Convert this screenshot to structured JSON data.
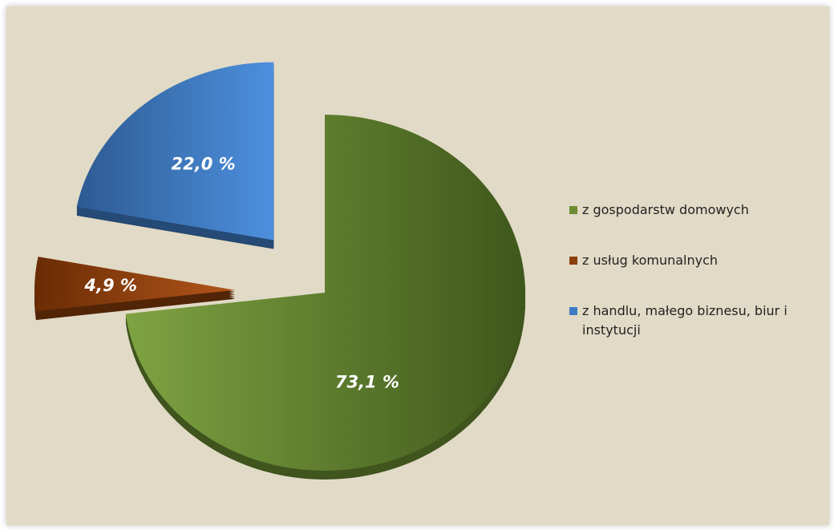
{
  "chart_data": {
    "type": "pie",
    "categories": [
      "z gospodarstw domowych",
      "z usług komunalnych",
      "z handlu, małego biznesu, biur i instytucji"
    ],
    "values": [
      73.1,
      4.9,
      22.0
    ],
    "value_labels": [
      "73,1 %",
      "4,9 %",
      "22,0 %"
    ],
    "colors": [
      "#6b8c32",
      "#8a3e0b",
      "#3f7cc4"
    ],
    "legend": "right"
  }
}
